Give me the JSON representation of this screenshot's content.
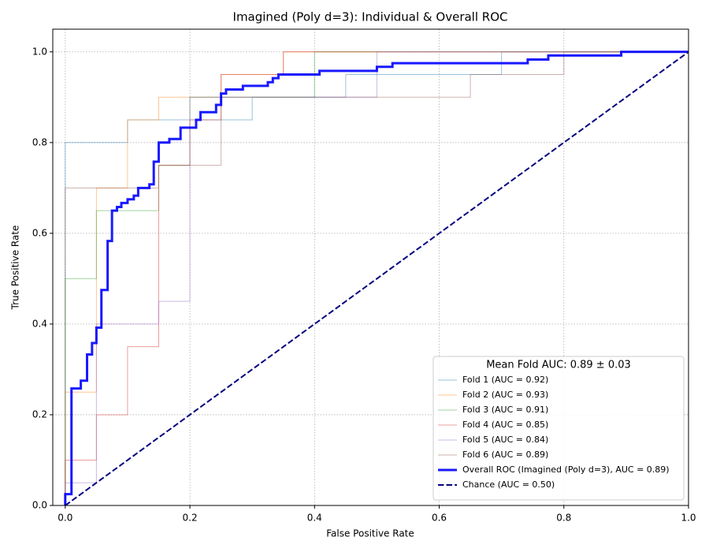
{
  "chart_data": {
    "type": "line",
    "title": "Imagined (Poly d=3): Individual & Overall ROC",
    "x_label": "False Positive Rate",
    "y_label": "True Positive Rate",
    "xlim": [
      -0.02,
      1.0
    ],
    "ylim": [
      0,
      1.05
    ],
    "xticks": [
      {
        "value": 0,
        "label": "0.0"
      },
      0.2,
      0.4,
      0.6,
      0.8,
      {
        "value": 1,
        "label": "1.0"
      }
    ],
    "yticks": [
      {
        "value": 0,
        "label": "0.0"
      },
      0.2,
      0.4,
      0.6,
      0.8,
      {
        "value": 1,
        "label": "1.0"
      }
    ],
    "grid": true,
    "legend_position": "lower right",
    "legend_title": "Mean Fold AUC: 0.89 ± 0.03",
    "series": [
      {
        "name": "Fold 1 (AUC = 0.92)",
        "color": "#1f77b4",
        "alpha": 0.45,
        "linewidth": 1,
        "linestyle": "solid",
        "x": [
          0,
          0,
          0.1,
          0.1,
          0.3,
          0.3,
          0.45,
          0.45,
          0.7,
          0.7,
          1
        ],
        "values": [
          0,
          0.8,
          0.8,
          0.85,
          0.85,
          0.9,
          0.9,
          0.95,
          0.95,
          1,
          1
        ]
      },
      {
        "name": "Fold 2 (AUC = 0.93)",
        "color": "#ff7f0e",
        "alpha": 0.45,
        "linewidth": 1,
        "linestyle": "solid",
        "x": [
          0,
          0,
          0.05,
          0.05,
          0.1,
          0.1,
          0.15,
          0.15,
          0.25,
          0.25,
          0.35,
          0.35,
          1
        ],
        "values": [
          0,
          0.25,
          0.25,
          0.7,
          0.7,
          0.85,
          0.85,
          0.9,
          0.9,
          0.95,
          0.95,
          1,
          1
        ]
      },
      {
        "name": "Fold 3 (AUC = 0.91)",
        "color": "#2ca02c",
        "alpha": 0.45,
        "linewidth": 1,
        "linestyle": "solid",
        "x": [
          0,
          0,
          0.05,
          0.05,
          0.15,
          0.15,
          0.2,
          0.2,
          0.4,
          0.4,
          1
        ],
        "values": [
          0,
          0.5,
          0.5,
          0.65,
          0.65,
          0.75,
          0.75,
          0.9,
          0.9,
          1,
          1
        ]
      },
      {
        "name": "Fold 4 (AUC = 0.85)",
        "color": "#d62728",
        "alpha": 0.45,
        "linewidth": 1,
        "linestyle": "solid",
        "x": [
          0,
          0,
          0.05,
          0.05,
          0.1,
          0.1,
          0.15,
          0.15,
          0.2,
          0.2,
          0.25,
          0.25,
          0.35,
          0.35,
          1
        ],
        "values": [
          0,
          0.1,
          0.1,
          0.2,
          0.2,
          0.35,
          0.35,
          0.75,
          0.75,
          0.85,
          0.85,
          0.95,
          0.95,
          1,
          1
        ]
      },
      {
        "name": "Fold 5 (AUC = 0.84)",
        "color": "#9467bd",
        "alpha": 0.45,
        "linewidth": 1,
        "linestyle": "solid",
        "x": [
          0,
          0,
          0.05,
          0.05,
          0.15,
          0.15,
          0.2,
          0.2,
          0.5,
          0.5,
          1
        ],
        "values": [
          0,
          0.05,
          0.05,
          0.4,
          0.4,
          0.45,
          0.45,
          0.9,
          0.9,
          1,
          1
        ]
      },
      {
        "name": "Fold 6 (AUC = 0.89)",
        "color": "#8c564b",
        "alpha": 0.45,
        "linewidth": 1,
        "linestyle": "solid",
        "x": [
          0,
          0,
          0.15,
          0.15,
          0.25,
          0.25,
          0.65,
          0.65,
          0.8,
          0.8,
          1
        ],
        "values": [
          0,
          0.7,
          0.7,
          0.75,
          0.75,
          0.9,
          0.9,
          0.95,
          0.95,
          1,
          1
        ]
      },
      {
        "name": "Overall ROC (Imagined (Poly d=3), AUC = 0.89)",
        "color": "#0000ff",
        "alpha": 0.9,
        "linewidth": 3,
        "linestyle": "solid",
        "x": [
          0,
          0,
          0.01,
          0.01,
          0.025,
          0.025,
          0.035,
          0.035,
          0.043,
          0.043,
          0.05,
          0.05,
          0.058,
          0.058,
          0.068,
          0.068,
          0.075,
          0.075,
          0.083,
          0.083,
          0.09,
          0.09,
          0.1,
          0.1,
          0.11,
          0.11,
          0.117,
          0.117,
          0.135,
          0.135,
          0.142,
          0.142,
          0.15,
          0.15,
          0.167,
          0.167,
          0.185,
          0.185,
          0.21,
          0.21,
          0.217,
          0.217,
          0.242,
          0.242,
          0.25,
          0.25,
          0.258,
          0.258,
          0.285,
          0.285,
          0.325,
          0.325,
          0.333,
          0.333,
          0.342,
          0.342,
          0.408,
          0.408,
          0.5,
          0.5,
          0.525,
          0.525,
          0.742,
          0.742,
          0.775,
          0.775,
          0.892,
          0.892,
          1
        ],
        "values": [
          0,
          0.025,
          0.025,
          0.258,
          0.258,
          0.275,
          0.275,
          0.333,
          0.333,
          0.358,
          0.358,
          0.392,
          0.392,
          0.475,
          0.475,
          0.583,
          0.583,
          0.65,
          0.65,
          0.658,
          0.658,
          0.667,
          0.667,
          0.675,
          0.675,
          0.683,
          0.683,
          0.7,
          0.7,
          0.708,
          0.708,
          0.758,
          0.758,
          0.8,
          0.8,
          0.808,
          0.808,
          0.833,
          0.833,
          0.85,
          0.85,
          0.867,
          0.867,
          0.883,
          0.883,
          0.908,
          0.908,
          0.917,
          0.917,
          0.925,
          0.925,
          0.933,
          0.933,
          0.942,
          0.942,
          0.95,
          0.95,
          0.958,
          0.958,
          0.967,
          0.967,
          0.975,
          0.975,
          0.983,
          0.983,
          0.992,
          0.992,
          1,
          1
        ]
      },
      {
        "name": "Chance (AUC = 0.50)",
        "color": "#000080",
        "alpha": 1,
        "linewidth": 2,
        "linestyle": "dashed",
        "x": [
          0,
          1
        ],
        "values": [
          0,
          1
        ]
      }
    ]
  }
}
